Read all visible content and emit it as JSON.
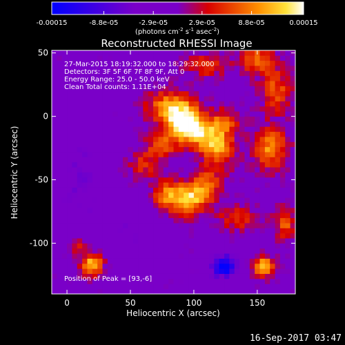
{
  "chart_data": {
    "type": "heatmap",
    "title": "Reconstructed RHESSI Image",
    "xlabel": "Heliocentric X (arcsec)",
    "ylabel": "Heliocentric Y (arcsec)",
    "xlim": [
      -12,
      180
    ],
    "ylim": [
      -140,
      52
    ],
    "x_ticks": [
      {
        "value": 0,
        "label": "0"
      },
      {
        "value": 50,
        "label": "50"
      },
      {
        "value": 100,
        "label": "100"
      },
      {
        "value": 150,
        "label": "150"
      }
    ],
    "y_ticks": [
      {
        "value": 50,
        "label": "50"
      },
      {
        "value": 0,
        "label": "0"
      },
      {
        "value": -50,
        "label": "-50"
      },
      {
        "value": -100,
        "label": "-100"
      }
    ],
    "colorbar": {
      "range": [
        -0.00015,
        0.00015
      ],
      "ticks": [
        {
          "value": -0.00015,
          "label": "-0.00015"
        },
        {
          "value": -8.8e-05,
          "label": "-8.8e-05"
        },
        {
          "value": -2.9e-05,
          "label": "-2.9e-05"
        },
        {
          "value": 2.9e-05,
          "label": "2.9e-05"
        },
        {
          "value": 8.8e-05,
          "label": "8.8e-05"
        },
        {
          "value": 0.00015,
          "label": "0.00015"
        }
      ],
      "units_label": "(photons cm",
      "units_exp1": "-2",
      "units_mid": " s",
      "units_exp2": "-1",
      "units_mid2": " asec",
      "units_exp3": "-2",
      "units_close": ")"
    },
    "info_lines": [
      "27-Mar-2015 18:19:32.000 to 18:29:32.000",
      "Detectors: 3F 5F 6F 7F 8F 9F, Att 0",
      "Energy Range: 25.0 - 50.0 keV",
      "Clean     Total counts: 1.11E+04"
    ],
    "peak_label": "Position of Peak = [93,-6]",
    "peak": [
      93,
      -6
    ],
    "blobs": [
      {
        "x": 93,
        "y": -6,
        "amp": 1.0,
        "sx": 10,
        "sy": 9
      },
      {
        "x": 82,
        "y": 8,
        "amp": 0.7,
        "sx": 13,
        "sy": 9
      },
      {
        "x": 108,
        "y": -15,
        "amp": 0.55,
        "sx": 10,
        "sy": 9
      },
      {
        "x": 75,
        "y": -22,
        "amp": 0.45,
        "sx": 9,
        "sy": 8
      },
      {
        "x": 120,
        "y": -25,
        "amp": 0.6,
        "sx": 9,
        "sy": 12
      },
      {
        "x": 95,
        "y": -65,
        "amp": 0.8,
        "sx": 9,
        "sy": 9
      },
      {
        "x": 78,
        "y": -62,
        "amp": 0.55,
        "sx": 8,
        "sy": 8
      },
      {
        "x": 110,
        "y": -55,
        "amp": 0.55,
        "sx": 8,
        "sy": 9
      },
      {
        "x": 160,
        "y": -25,
        "amp": 0.65,
        "sx": 10,
        "sy": 12
      },
      {
        "x": 165,
        "y": 20,
        "amp": 0.5,
        "sx": 9,
        "sy": 12
      },
      {
        "x": 150,
        "y": 45,
        "amp": 0.55,
        "sx": 10,
        "sy": 8
      },
      {
        "x": 110,
        "y": 40,
        "amp": 0.45,
        "sx": 12,
        "sy": 6
      },
      {
        "x": 20,
        "y": -117,
        "amp": 0.85,
        "sx": 6,
        "sy": 6
      },
      {
        "x": 155,
        "y": -118,
        "amp": 0.8,
        "sx": 6,
        "sy": 6
      },
      {
        "x": 8,
        "y": -103,
        "amp": 0.35,
        "sx": 5,
        "sy": 6
      },
      {
        "x": 172,
        "y": -85,
        "amp": 0.5,
        "sx": 6,
        "sy": 9
      },
      {
        "x": 60,
        "y": -38,
        "amp": 0.35,
        "sx": 9,
        "sy": 9
      },
      {
        "x": 135,
        "y": -80,
        "amp": 0.4,
        "sx": 12,
        "sy": 7
      },
      {
        "x": 125,
        "y": -3,
        "amp": 0.4,
        "sx": 8,
        "sy": 7
      }
    ],
    "negative_blobs": [
      {
        "x": 124,
        "y": -118,
        "amp": 0.9,
        "sx": 7,
        "sy": 6
      },
      {
        "x": 10,
        "y": -50,
        "amp": 0.2,
        "sx": 14,
        "sy": 30
      },
      {
        "x": 50,
        "y": -90,
        "amp": 0.15,
        "sx": 15,
        "sy": 15
      }
    ]
  },
  "footer": {
    "timestamp": "16-Sep-2017 03:47"
  }
}
